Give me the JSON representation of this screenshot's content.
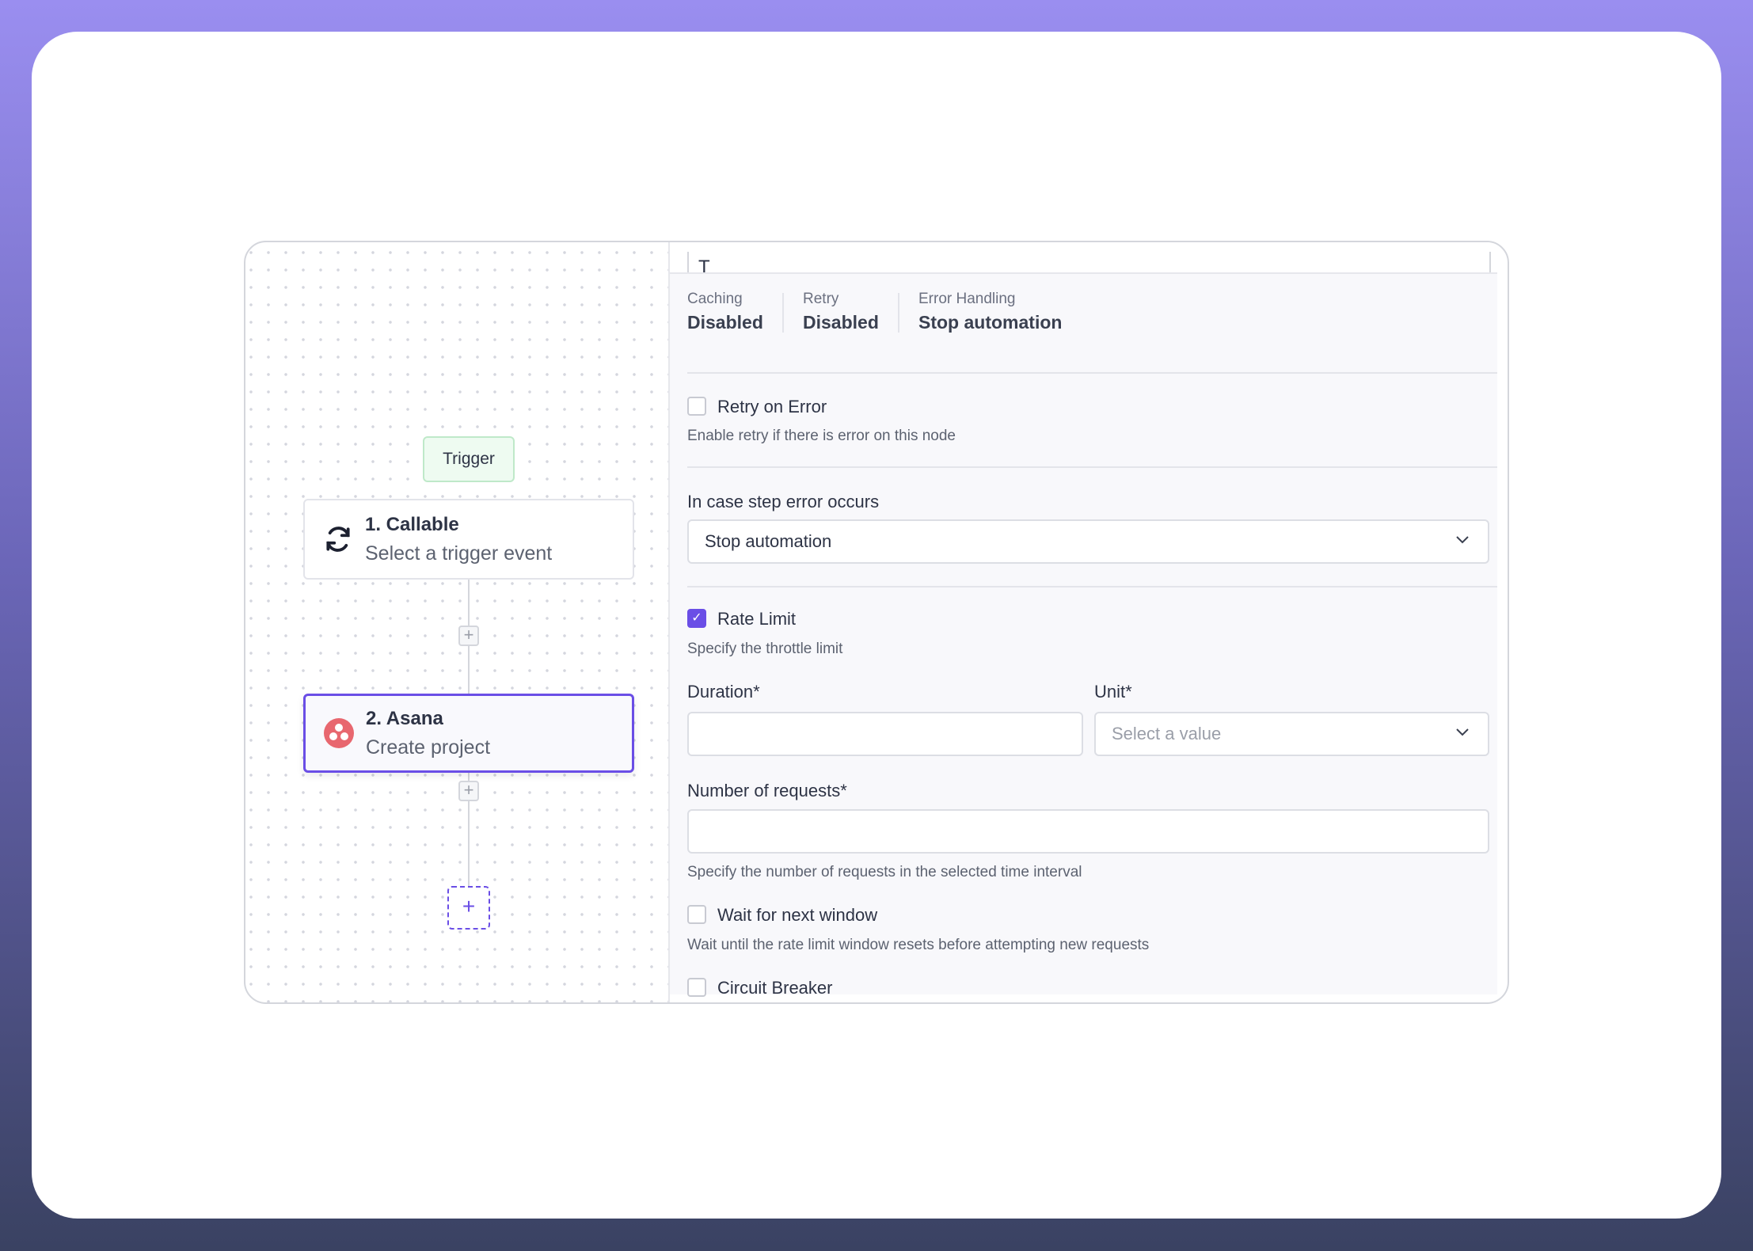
{
  "canvas": {
    "trigger_label": "Trigger",
    "nodes": [
      {
        "title": "1. Callable",
        "subtitle": "Select a trigger event",
        "icon": "refresh-icon"
      },
      {
        "title": "2. Asana",
        "subtitle": "Create project",
        "icon": "asana-logo-icon",
        "selected": true
      }
    ],
    "add_symbol": "+"
  },
  "panel": {
    "top_fragment": "T",
    "summary": [
      {
        "label": "Caching",
        "value": "Disabled"
      },
      {
        "label": "Retry",
        "value": "Disabled"
      },
      {
        "label": "Error Handling",
        "value": "Stop automation"
      }
    ],
    "retry_on_error": {
      "label": "Retry on Error",
      "description": "Enable retry if there is error on this node",
      "checked": false
    },
    "error_step": {
      "label": "In case step error occurs",
      "value": "Stop automation"
    },
    "rate_limit": {
      "label": "Rate Limit",
      "description": "Specify the throttle limit",
      "checked": true,
      "duration_label": "Duration*",
      "duration_value": "",
      "unit_label": "Unit*",
      "unit_placeholder": "Select a value",
      "requests_label": "Number of requests*",
      "requests_value": "",
      "requests_description": "Specify the number of requests in the selected time interval"
    },
    "wait_next_window": {
      "label": "Wait for next window",
      "description": "Wait until the rate limit window resets before attempting new requests",
      "checked": false
    },
    "circuit_breaker": {
      "label": "Circuit Breaker",
      "checked": false
    }
  },
  "colors": {
    "accent": "#6a4ee6",
    "trigger_bg": "#eefbf1",
    "asana": "#e8676f"
  }
}
